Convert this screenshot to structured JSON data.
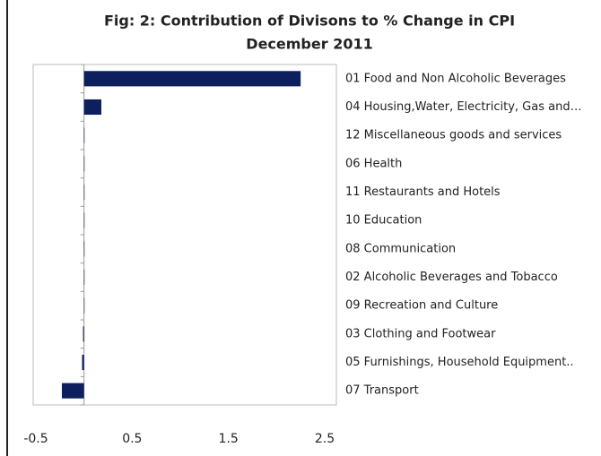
{
  "chart_data": {
    "type": "barh",
    "title": "Fig: 2: Contribution of Divisons to % Change in CPI",
    "subtitle": "December 2011",
    "categories": [
      "01 Food and Non Alcoholic Beverages",
      "04 Housing,Water, Electricity, Gas and…",
      "12 Miscellaneous goods and services",
      "06 Health",
      "11 Restaurants and Hotels",
      "10 Education",
      "08 Communication",
      "02 Alcoholic Beverages and Tobacco",
      "09 Recreation and Culture",
      "03 Clothing and Footwear",
      "05 Furnishings, Household Equipment..",
      "07 Transport"
    ],
    "values": [
      2.25,
      0.18,
      0.005,
      0,
      0,
      0,
      0,
      0,
      0,
      -0.01,
      -0.02,
      -0.23
    ],
    "color": "#0d1f5c",
    "xlim": [
      -0.5,
      2.5
    ],
    "xticks": [
      -0.5,
      0.5,
      1.5,
      2.5
    ],
    "grid": false
  }
}
